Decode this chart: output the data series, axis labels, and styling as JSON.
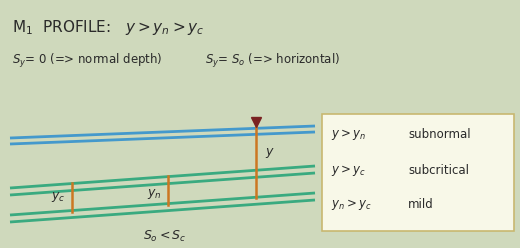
{
  "bg_color": "#cfd9bc",
  "title_text": "M$_1$  PROFILE:   $y > y_n > y_c$",
  "subtitle1": "$S_y$= 0 (=> normal depth)",
  "subtitle2": "$S_y$= $S_o$ (=> horizontal)",
  "bottom_color": "#3aaa80",
  "yn_color": "#3aaa80",
  "y_color": "#4499cc",
  "vert_color": "#cc7722",
  "arrow_color": "#7a2222",
  "box_bg": "#f8f8e8",
  "box_border": "#c8b870",
  "dark_text": "#2a2a2a",
  "slope_label": "$S_o < S_c$"
}
